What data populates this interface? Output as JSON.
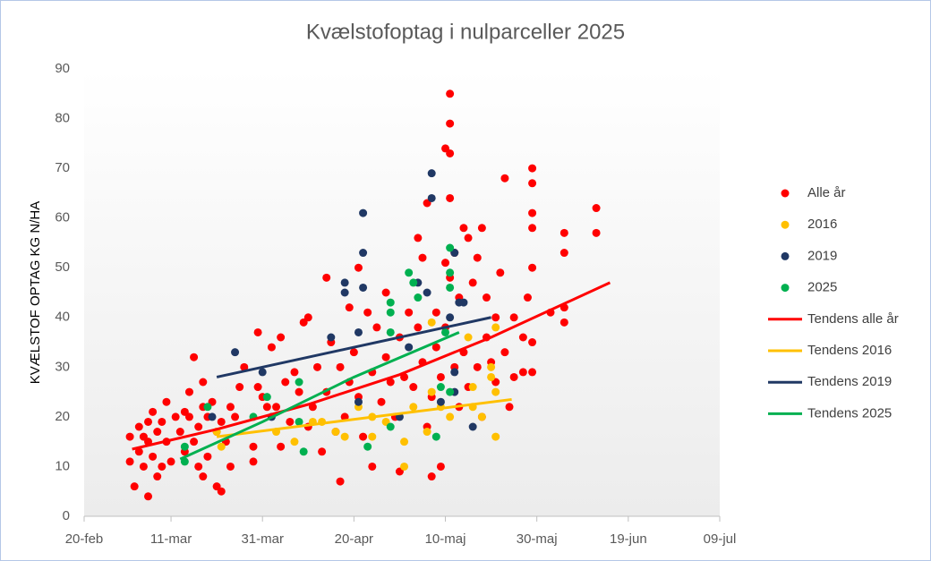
{
  "chart_data": {
    "type": "scatter",
    "title": "Kvælstofoptag  i nulparceller  2025",
    "y_label": "KVÆLSTOF OPTAG KG N/HA",
    "xlim": [
      51,
      190
    ],
    "xticks": [
      {
        "value": 51,
        "label": "20-feb"
      },
      {
        "value": 70,
        "label": "11-mar"
      },
      {
        "value": 90,
        "label": "31-mar"
      },
      {
        "value": 110,
        "label": "20-apr"
      },
      {
        "value": 130,
        "label": "10-maj"
      },
      {
        "value": 150,
        "label": "30-maj"
      },
      {
        "value": 170,
        "label": "19-jun"
      },
      {
        "value": 190,
        "label": "09-jul"
      }
    ],
    "ylim": [
      0,
      90
    ],
    "yticks": [
      0,
      10,
      20,
      30,
      40,
      50,
      60,
      70,
      80,
      90
    ],
    "legend": "right",
    "series": [
      {
        "name": "Alle år",
        "color": "#ff0000",
        "style": "marker",
        "x": [
          61,
          61,
          62,
          63,
          63,
          64,
          64,
          65,
          65,
          65,
          66,
          66,
          67,
          67,
          68,
          68,
          69,
          69,
          70,
          71,
          72,
          73,
          73,
          74,
          74,
          75,
          75,
          76,
          76,
          77,
          77,
          77,
          78,
          78,
          79,
          80,
          80,
          81,
          81,
          82,
          83,
          83,
          84,
          85,
          86,
          88,
          88,
          89,
          89,
          90,
          91,
          92,
          93,
          94,
          94,
          95,
          96,
          97,
          98,
          99,
          100,
          100,
          101,
          102,
          103,
          104,
          104,
          105,
          106,
          107,
          107,
          108,
          109,
          109,
          110,
          111,
          111,
          112,
          113,
          114,
          114,
          115,
          116,
          117,
          117,
          118,
          119,
          120,
          120,
          121,
          122,
          123,
          124,
          124,
          125,
          125,
          126,
          126,
          127,
          127,
          128,
          128,
          129,
          129,
          130,
          130,
          130,
          131,
          131,
          131,
          131,
          131,
          132,
          132,
          133,
          133,
          134,
          134,
          135,
          135,
          136,
          137,
          137,
          138,
          138,
          139,
          139,
          140,
          141,
          141,
          142,
          143,
          143,
          144,
          145,
          145,
          147,
          147,
          148,
          149,
          149,
          149,
          149,
          149,
          149,
          149,
          153,
          156,
          156,
          156,
          156,
          163,
          163
        ],
        "values": [
          16,
          11,
          6,
          18,
          13,
          10,
          16,
          4,
          19,
          15,
          21,
          12,
          8,
          17,
          19,
          10,
          23,
          15,
          11,
          20,
          17,
          21,
          13,
          25,
          20,
          32,
          15,
          18,
          10,
          27,
          22,
          8,
          20,
          12,
          23,
          17,
          6,
          5,
          19,
          15,
          10,
          22,
          20,
          26,
          30,
          14,
          11,
          37,
          26,
          24,
          22,
          34,
          22,
          14,
          36,
          27,
          19,
          29,
          25,
          39,
          40,
          18,
          22,
          30,
          13,
          48,
          25,
          35,
          17,
          7,
          30,
          20,
          27,
          42,
          33,
          50,
          24,
          16,
          41,
          29,
          10,
          38,
          23,
          45,
          32,
          27,
          20,
          9,
          36,
          28,
          41,
          26,
          56,
          38,
          31,
          52,
          63,
          18,
          24,
          8,
          34,
          41,
          10,
          28,
          51,
          38,
          74,
          85,
          79,
          73,
          64,
          48,
          53,
          30,
          22,
          44,
          58,
          33,
          56,
          26,
          47,
          30,
          52,
          20,
          58,
          36,
          44,
          31,
          27,
          40,
          49,
          68,
          33,
          22,
          40,
          28,
          29,
          36,
          44,
          70,
          67,
          61,
          58,
          50,
          35,
          29,
          41,
          39,
          57,
          53,
          42,
          62,
          57
        ]
      },
      {
        "name": "2016",
        "color": "#ffc000",
        "style": "marker",
        "x": [
          80,
          81,
          93,
          97,
          101,
          103,
          106,
          108,
          111,
          114,
          114,
          117,
          121,
          121,
          123,
          126,
          127,
          127,
          129,
          131,
          135,
          136,
          136,
          138,
          140,
          140,
          141,
          141,
          141
        ],
        "values": [
          17,
          14,
          17,
          15,
          19,
          19,
          17,
          16,
          22,
          20,
          16,
          19,
          15,
          10,
          22,
          17,
          39,
          25,
          22,
          20,
          36,
          26,
          22,
          20,
          30,
          28,
          16,
          38,
          25
        ]
      },
      {
        "name": "2019",
        "color": "#203864",
        "style": "marker",
        "x": [
          79,
          84,
          90,
          92,
          105,
          108,
          108,
          112,
          112,
          112,
          111,
          111,
          120,
          122,
          124,
          126,
          127,
          127,
          129,
          131,
          132,
          132,
          133,
          134,
          136,
          132
        ],
        "values": [
          20,
          33,
          29,
          20,
          36,
          47,
          45,
          61,
          53,
          46,
          37,
          23,
          20,
          34,
          47,
          45,
          69,
          64,
          23,
          40,
          53,
          25,
          43,
          43,
          18,
          29
        ]
      },
      {
        "name": "2025",
        "color": "#00b050",
        "style": "marker",
        "x": [
          73,
          73,
          78,
          88,
          91,
          98,
          98,
          99,
          113,
          118,
          118,
          118,
          118,
          122,
          123,
          124,
          128,
          129,
          131,
          131,
          131,
          130,
          131
        ],
        "values": [
          14,
          11,
          22,
          20,
          24,
          27,
          19,
          13,
          14,
          43,
          41,
          37,
          18,
          49,
          47,
          44,
          16,
          26,
          54,
          49,
          46,
          37,
          25
        ]
      },
      {
        "name": "Tendens alle år",
        "color": "#ff0000",
        "style": "line",
        "x": [
          61.5,
          80,
          100,
          120,
          140,
          166
        ],
        "values": [
          13.5,
          17.5,
          22.5,
          28.5,
          36,
          47
        ]
      },
      {
        "name": "Tendens 2016",
        "color": "#ffc000",
        "style": "line",
        "x": [
          80,
          144.5
        ],
        "values": [
          16,
          23.5
        ]
      },
      {
        "name": "Tendens 2019",
        "color": "#203864",
        "style": "line",
        "x": [
          80,
          140
        ],
        "values": [
          28,
          40
        ]
      },
      {
        "name": "Tendens 2025",
        "color": "#00b050",
        "style": "line",
        "x": [
          72,
          90,
          110,
          133
        ],
        "values": [
          11.5,
          19,
          28,
          37
        ]
      }
    ]
  }
}
